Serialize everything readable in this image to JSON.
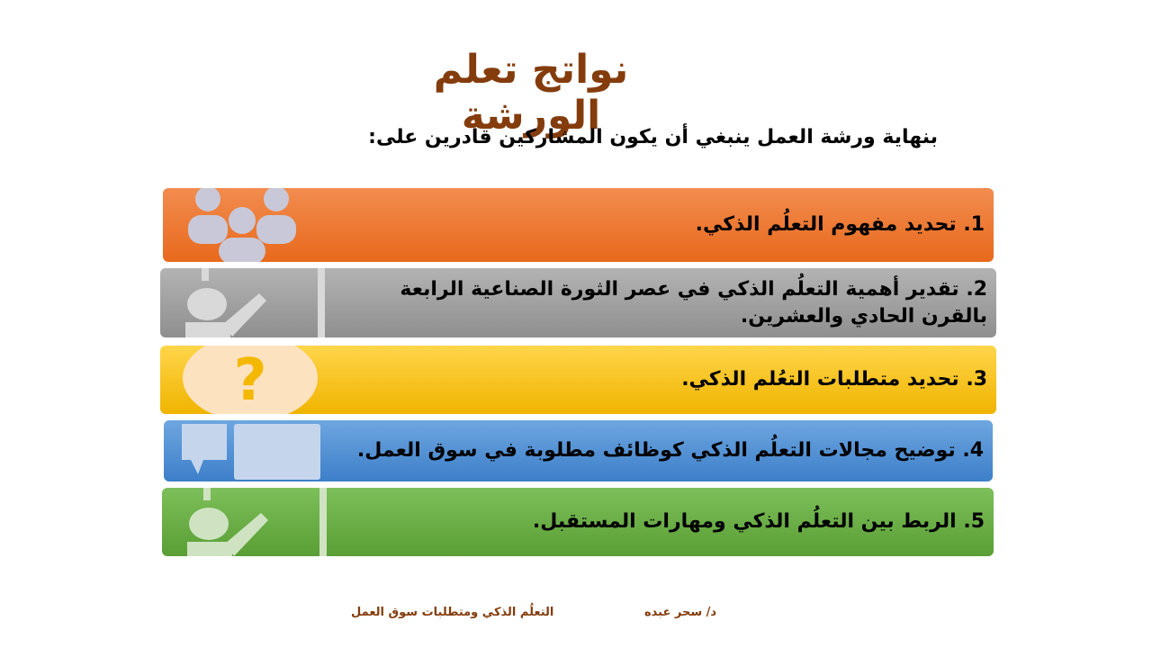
{
  "title": "نواتج تعلم الورشة",
  "subtitle": "بنهاية ورشة العمل ينبغي أن يكون المشاركين قادرين على:",
  "items": [
    {
      "label": "1. تحديد مفهوم التعلُم الذكي.",
      "color": "#ed7d31",
      "icon": "people-group-icon"
    },
    {
      "label": "2. تقدير أهمية التعلُم الذكي في عصر الثورة الصناعية الرابعة بالقرن الحادي والعشرين.",
      "color": "#a5a5a5",
      "icon": "presenter-icon"
    },
    {
      "label": "3. تحديد متطلبات التعُلم الذكي.",
      "color": "#ffc000",
      "icon": "question-mark-icon"
    },
    {
      "label": "4. توضيح مجالات التعلُم الذكي كوظائف مطلوبة في سوق العمل.",
      "color": "#5b9bd5",
      "icon": "speech-bubbles-icon"
    },
    {
      "label": "5. الربط بين التعلُم الذكي ومهارات المستقبل.",
      "color": "#70ad47",
      "icon": "presenter-icon"
    }
  ],
  "footer": {
    "author": "د/ سحر عبده",
    "course": "التعلُم الذكي ومتطلبات سوق العمل"
  }
}
